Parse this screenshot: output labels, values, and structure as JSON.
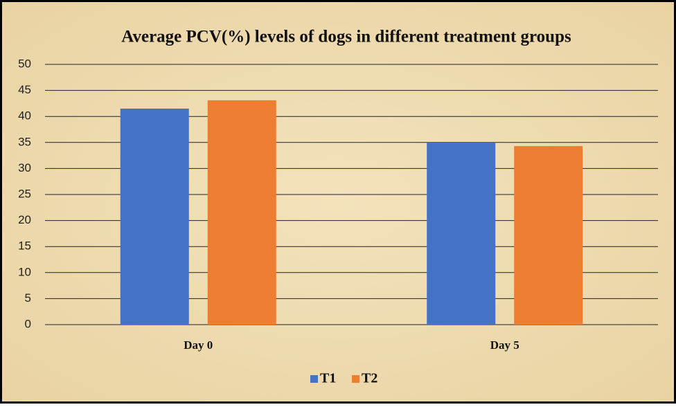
{
  "chart_data": {
    "type": "bar",
    "title": "Average PCV(%) levels of dogs in different treatment groups",
    "categories": [
      "Day 0",
      "Day 5"
    ],
    "series": [
      {
        "name": "T1",
        "color": "#4472c4",
        "values": [
          41.5,
          35.0
        ]
      },
      {
        "name": "T2",
        "color": "#ed7d31",
        "values": [
          43.1,
          34.3
        ]
      }
    ],
    "ylim": [
      0,
      50
    ],
    "yticks": [
      0,
      5,
      10,
      15,
      20,
      25,
      30,
      35,
      40,
      45,
      50
    ],
    "grid": true,
    "legend": "bottom"
  }
}
